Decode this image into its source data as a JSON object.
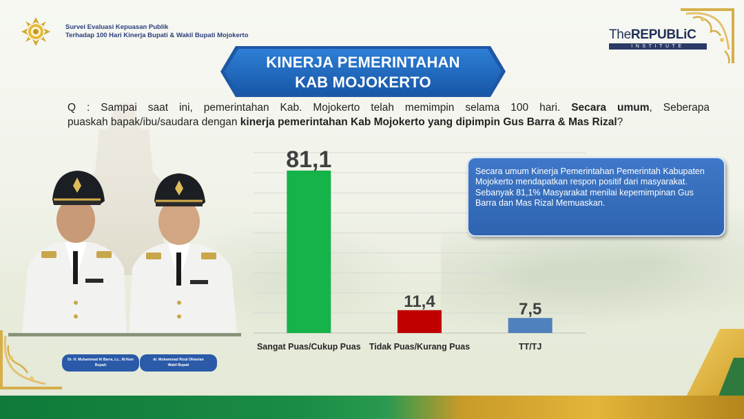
{
  "header": {
    "line1": "Survei Evaluasi Kepuasan Publik",
    "line2": "Terhadap 100 Hari Kinerja Bupati & Wakil Bupati Mojokerto"
  },
  "brand": {
    "the": "The",
    "name": "REPUBLiC",
    "sub": "INSTITUTE"
  },
  "title": {
    "line1": "KINERJA PEMERINTAHAN",
    "line2": "KAB MOJOKERTO"
  },
  "question": {
    "prefix": "Q : Sampai saat ini, pemerintahan Kab. Mojokerto telah memimpin selama 100 hari. ",
    "bold1": "Secara umum",
    "mid": ", Seberapa",
    "line2_start": "puaskah bapak/ibu/saudara dengan ",
    "bold2": "kinerja pemerintahan Kab Mojokerto yang dipimpin Gus Barra & Mas Rizal",
    "end": "?"
  },
  "info_box": "Secara umum Kinerja Pemerintahan Pemerintah Kabupaten Mojokerto mendapatkan respon positif dari masyarakat.  Sebanyak 81,1% Masyarakat menilai kepemimpinan Gus Barra dan Mas Rizal Memuaskan.",
  "people": {
    "left_name": "Dr. H. Muhammad Al Barra, Lc., M.Hum",
    "left_role": "Bupati",
    "right_name": "dr. Muhammad Rizal Oktavian",
    "right_role": "Wakil Bupati"
  },
  "colors": {
    "green": "#16b24a",
    "red": "#c00000",
    "blue": "#4f81bd",
    "banner": "#1e5aa8"
  },
  "chart_data": {
    "type": "bar",
    "categories": [
      "Sangat Puas/Cukup Puas",
      "Tidak Puas/Kurang Puas",
      "TT/TJ"
    ],
    "values": [
      81.1,
      11.4,
      7.5
    ],
    "value_labels": [
      "81,1",
      "11,4",
      "7,5"
    ],
    "colors": [
      "#16b24a",
      "#c00000",
      "#4f81bd"
    ],
    "ylim": [
      0,
      90
    ],
    "grid": true
  }
}
